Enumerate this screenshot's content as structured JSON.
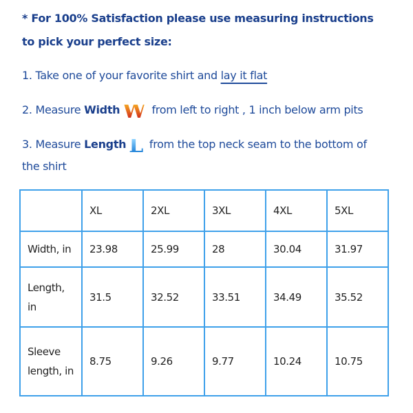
{
  "intro": {
    "line1": "* For 100% Satisfaction please use measuring instructions",
    "line2": "to pick your perfect size:"
  },
  "steps": [
    {
      "prefix": "1. Take one of your favorite shirt and ",
      "link": "lay it flat"
    },
    {
      "prefix": "2. Measure ",
      "bold": "Width",
      "icon_letter": "W",
      "suffix": " from left to right , 1 inch below arm pits"
    },
    {
      "prefix": "3. Measure ",
      "bold": "Length",
      "icon_letter": "L",
      "suffix": " from the top neck seam to the bottom of",
      "suffix2": "the shirt"
    }
  ],
  "table": {
    "headers": [
      "",
      "XL",
      "2XL",
      "3XL",
      "4XL",
      "5XL"
    ],
    "rows": [
      [
        "Width, in",
        "23.98",
        "25.99",
        "28",
        "30.04",
        "31.97"
      ],
      [
        "Length, in",
        "31.5",
        "32.52",
        "33.51",
        "34.49",
        "35.52"
      ],
      [
        "Sleeve length, in",
        "8.75",
        "9.26",
        "9.77",
        "10.24",
        "10.75"
      ]
    ]
  },
  "colors": {
    "text": "#1e4a9a",
    "table_border": "#3ea0ea"
  }
}
